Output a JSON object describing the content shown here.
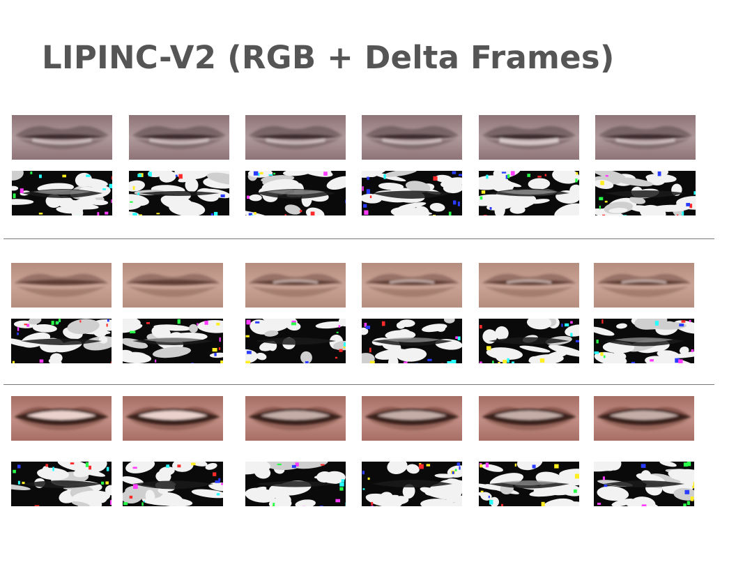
{
  "slide": {
    "title": "LIPINC-V2 (RGB + Delta Frames)"
  },
  "groups": [
    {
      "id": "group-1",
      "skin": [
        "#6a5559",
        "#8e7377",
        "#b09a9c",
        "#e8dcdd"
      ],
      "lip_shape": "closed",
      "frames": 6,
      "delta_accents": [
        "#ff2a2a",
        "#2aff4a",
        "#2a3cff",
        "#ff3cff",
        "#2affff",
        "#ffee22"
      ]
    },
    {
      "id": "group-2",
      "skin": [
        "#8a6458",
        "#b58d7e",
        "#caa496",
        "#f2e2dc"
      ],
      "lip_shape": "slightly-open",
      "frames": 6,
      "delta_accents": [
        "#ff2a2a",
        "#2aff4a",
        "#2a3cff",
        "#ff3cff",
        "#2affff",
        "#ffee22"
      ]
    },
    {
      "id": "group-3",
      "skin": [
        "#7a4a40",
        "#a66e64",
        "#c28f86",
        "#f4dcd6"
      ],
      "lip_shape": "teeth-visible",
      "frames": 6,
      "delta_accents": [
        "#ff2a2a",
        "#2aff4a",
        "#2a3cff",
        "#ff3cff",
        "#2affff",
        "#ffee22"
      ]
    }
  ]
}
